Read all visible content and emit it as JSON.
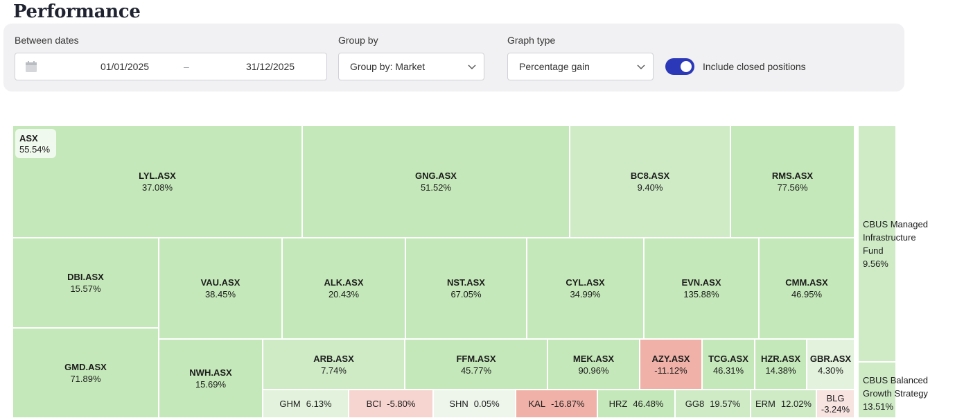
{
  "page": {
    "title": "Performance"
  },
  "filters": {
    "dates": {
      "label": "Between dates",
      "start": "01/01/2025",
      "separator": "–",
      "end": "31/12/2025"
    },
    "group_by": {
      "label": "Group by",
      "value": "Group by: Market"
    },
    "graph_type": {
      "label": "Graph type",
      "value": "Percentage gain"
    },
    "closed_positions": {
      "label": "Include closed positions",
      "enabled": true
    }
  },
  "colors": {
    "accent": "#2b38b8",
    "gain_strong": "#c4e8b9",
    "gain_medium": "#cfebc6",
    "gain_light": "#e2f2dc",
    "gain_faint": "#eef6ec",
    "loss_strong": "#f0b2a8",
    "loss_medium": "#f6d4cf",
    "loss_light": "#f7e3e0"
  },
  "chart_data": {
    "type": "treemap",
    "metric": "Percentage gain",
    "groups": [
      {
        "name": "ASX",
        "value": "55.54%",
        "items": [
          {
            "name": "LYL.ASX",
            "value": "37.08%"
          },
          {
            "name": "GNG.ASX",
            "value": "51.52%"
          },
          {
            "name": "BC8.ASX",
            "value": "9.40%"
          },
          {
            "name": "RMS.ASX",
            "value": "77.56%"
          },
          {
            "name": "DBI.ASX",
            "value": "15.57%"
          },
          {
            "name": "VAU.ASX",
            "value": "38.45%"
          },
          {
            "name": "ALK.ASX",
            "value": "20.43%"
          },
          {
            "name": "NST.ASX",
            "value": "67.05%"
          },
          {
            "name": "CYL.ASX",
            "value": "34.99%"
          },
          {
            "name": "EVN.ASX",
            "value": "135.88%"
          },
          {
            "name": "CMM.ASX",
            "value": "46.95%"
          },
          {
            "name": "GMD.ASX",
            "value": "71.89%"
          },
          {
            "name": "NWH.ASX",
            "value": "15.69%"
          },
          {
            "name": "ARB.ASX",
            "value": "7.74%"
          },
          {
            "name": "FFM.ASX",
            "value": "45.77%"
          },
          {
            "name": "MEK.ASX",
            "value": "90.96%"
          },
          {
            "name": "AZY.ASX",
            "value": "-11.12%"
          },
          {
            "name": "TCG.ASX",
            "value": "46.31%"
          },
          {
            "name": "HZR.ASX",
            "value": "14.38%"
          },
          {
            "name": "GBR.ASX",
            "value": "4.30%"
          },
          {
            "name": "GHM",
            "value": "6.13%"
          },
          {
            "name": "BCI",
            "value": "-5.80%"
          },
          {
            "name": "SHN",
            "value": "0.05%"
          },
          {
            "name": "KAL",
            "value": "-16.87%"
          },
          {
            "name": "HRZ",
            "value": "46.48%"
          },
          {
            "name": "GG8",
            "value": "19.57%"
          },
          {
            "name": "ERM",
            "value": "12.02%"
          },
          {
            "name": "BLG",
            "value": "-3.24%"
          }
        ]
      },
      {
        "name": "CBUS Managed Infrastructure Fund",
        "value": "9.56%",
        "items": []
      },
      {
        "name": "CBUS Balanced Growth Strategy",
        "value": "13.51%",
        "items": []
      }
    ]
  }
}
